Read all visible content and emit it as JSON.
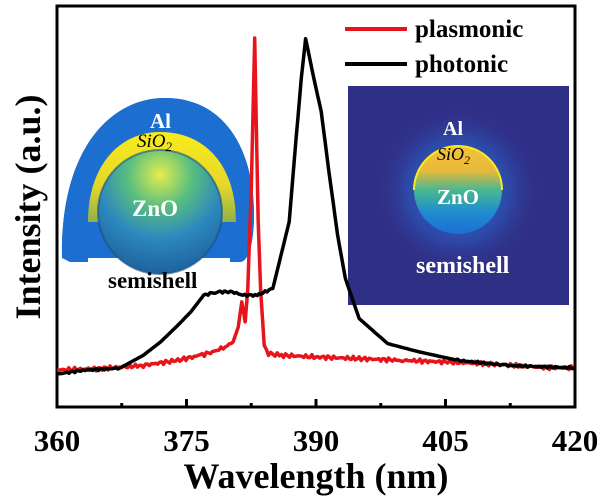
{
  "chart_data": {
    "type": "line",
    "title": "",
    "xlabel": "Wavelength (nm)",
    "ylabel": "Intensity (a.u.)",
    "xlim": [
      360,
      420
    ],
    "ylim": [
      0,
      1.1
    ],
    "xticks": [
      360,
      375,
      390,
      405,
      420
    ],
    "xtick_labels": [
      "360",
      "375",
      "390",
      "405",
      "420"
    ],
    "minor_xticks": [
      367.5,
      382.5,
      397.5,
      412.5
    ],
    "grid": false,
    "legend_position": "top-right",
    "series": [
      {
        "name": "plasmonic",
        "color": "#e8141b",
        "x": [
          360,
          365,
          370,
          374,
          376.6,
          378,
          379.5,
          380.4,
          381,
          381.4,
          381.8,
          382.1,
          382.5,
          382.9,
          383.3,
          383.6,
          384.0,
          384.5,
          386,
          390,
          395,
          400,
          405,
          410,
          415,
          420
        ],
        "y": [
          0.006,
          0.01,
          0.02,
          0.035,
          0.05,
          0.06,
          0.075,
          0.09,
          0.135,
          0.21,
          0.15,
          0.25,
          0.55,
          1.0,
          0.45,
          0.24,
          0.08,
          0.055,
          0.05,
          0.045,
          0.04,
          0.035,
          0.03,
          0.025,
          0.015,
          0.012
        ]
      },
      {
        "name": "photonic",
        "color": "#000000",
        "x": [
          360,
          363,
          367.3,
          370,
          372,
          374,
          375.5,
          377,
          378.5,
          380.3,
          381.5,
          383.2,
          385,
          386.9,
          387.7,
          388.3,
          388.8,
          389.5,
          390,
          390.6,
          391.5,
          392.5,
          393.4,
          395,
          398.3,
          402,
          406.4,
          412,
          420
        ],
        "y": [
          -0.006,
          0.005,
          0.012,
          0.05,
          0.09,
          0.14,
          0.18,
          0.23,
          0.24,
          0.24,
          0.23,
          0.23,
          0.25,
          0.45,
          0.7,
          0.88,
          0.998,
          0.91,
          0.85,
          0.78,
          0.6,
          0.41,
          0.28,
          0.16,
          0.085,
          0.06,
          0.035,
          0.02,
          0.012
        ]
      }
    ]
  },
  "insets": [
    {
      "name": "semishell-3d-schematic",
      "labels": {
        "shell": "Al",
        "spacer": "SiO2",
        "spacer_base": "SiO",
        "spacer_sub": "2",
        "core": "ZnO",
        "caption": "semishell"
      }
    },
    {
      "name": "semishell-field-map",
      "labels": {
        "shell": "Al",
        "spacer": "SiO2",
        "spacer_base": "SiO",
        "spacer_sub": "2",
        "core": "ZnO",
        "caption": "semishell"
      }
    }
  ],
  "colors": {
    "field_background": "#302f86",
    "shell_blue": "#1c6fd1",
    "spacer_yellow": "#f1e21b",
    "core_blue": "#2d7fb8"
  }
}
